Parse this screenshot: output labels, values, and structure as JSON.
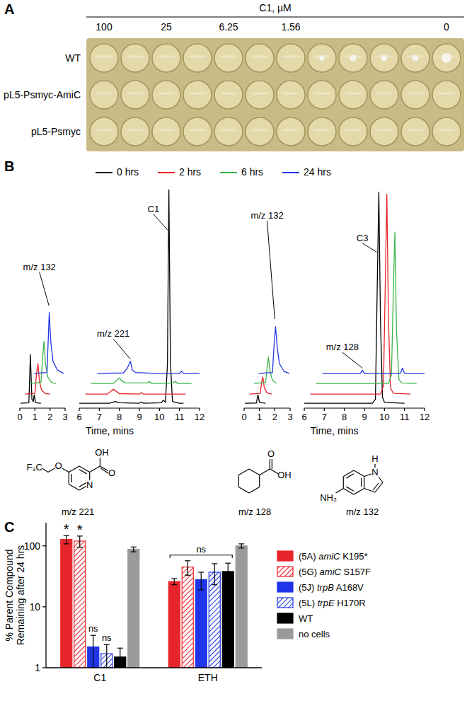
{
  "panel_labels": [
    "A",
    "B",
    "C"
  ],
  "plate": {
    "title": "C1, µM",
    "column_labels": [
      "100",
      null,
      "25",
      null,
      "6.25",
      null,
      "1.56",
      null,
      null,
      null,
      null,
      "0"
    ],
    "rows": [
      "WT",
      "pL5-Psmyc-AmiC",
      "pL5-Psmyc"
    ],
    "growth": [
      [
        0,
        0,
        0,
        0,
        0,
        0,
        0,
        0.4,
        0.5,
        0.5,
        0.5,
        0.9
      ],
      [
        0,
        0,
        0,
        0,
        0,
        0,
        0,
        0,
        0,
        0,
        0,
        0
      ],
      [
        0,
        0,
        0,
        0,
        0,
        0,
        0,
        0,
        0,
        0,
        0,
        0
      ]
    ]
  },
  "chromatogram_legend": [
    {
      "name": "0 hrs",
      "color": "#000000"
    },
    {
      "name": "2 hrs",
      "color": "#e8242b"
    },
    {
      "name": "6 hrs",
      "color": "#3cb54a"
    },
    {
      "name": "24 hrs",
      "color": "#1f35e6"
    }
  ],
  "structures": [
    {
      "label": "m/z 221",
      "atoms": [
        "F₃C",
        "O",
        "N",
        "O",
        "OH"
      ]
    },
    {
      "label": "m/z 128",
      "atoms": [
        "O",
        "OH"
      ]
    },
    {
      "label": "m/z 132",
      "atoms": [
        "H",
        "N",
        "NH₂"
      ]
    }
  ],
  "chart_data": [
    {
      "type": "line",
      "xlim": [
        0,
        3
      ],
      "xticks": [
        0,
        1,
        2,
        3
      ],
      "ylim": [
        0,
        100
      ],
      "tick_labels": "x",
      "series": [
        {
          "color": "#000000",
          "x": [
            0.05,
            0.6,
            0.7,
            0.8,
            0.9,
            0.95,
            1.05,
            1.4
          ],
          "values": [
            2.2,
            2.4,
            24,
            4,
            3,
            6,
            2.4,
            2.2
          ]
        },
        {
          "color": "#e8242b",
          "x": [
            0.35,
            1.0,
            1.1,
            1.2,
            1.3,
            1.45,
            1.7,
            2.0
          ],
          "values": [
            6.3,
            6.6,
            15,
            20,
            12,
            8,
            6.5,
            6.3
          ]
        },
        {
          "color": "#3cb54a",
          "x": [
            0.65,
            1.4,
            1.5,
            1.6,
            1.7,
            1.85,
            2.1,
            2.4
          ],
          "values": [
            11.1,
            11.5,
            22,
            30,
            20,
            14,
            11.5,
            11.1
          ]
        },
        {
          "color": "#1f35e6",
          "x": [
            0.95,
            1.8,
            1.88,
            1.95,
            2.05,
            2.2,
            2.5,
            2.9
          ],
          "values": [
            15.6,
            16,
            30,
            43,
            30,
            21,
            17,
            15.6
          ]
        }
      ],
      "annotations": [
        {
          "text": "m/z 132",
          "x": 1.3,
          "y": 62,
          "target_x": 1.93,
          "target_y": 46
        }
      ]
    },
    {
      "type": "line",
      "xlim": [
        6,
        12
      ],
      "xticks": [
        6,
        7,
        8,
        9,
        10,
        11,
        12
      ],
      "ylim": [
        0,
        100
      ],
      "tick_labels": "x",
      "xlabel": "Time, mins",
      "series": [
        {
          "color": "#000000",
          "x": [
            6,
            7.5,
            7.8,
            8,
            9.0,
            9.1,
            9.2,
            10.1,
            10.2,
            10.3,
            10.4,
            10.47,
            10.55,
            10.65,
            11,
            11.2
          ],
          "values": [
            2.2,
            2.2,
            3,
            2.4,
            2.2,
            2.8,
            2.2,
            2.4,
            3.6,
            2.6,
            20,
            98,
            20,
            3,
            2.2,
            2.2
          ]
        },
        {
          "color": "#e8242b",
          "x": [
            6.3,
            7.4,
            7.7,
            7.85,
            8.0,
            9.0,
            9.1,
            9.2,
            10.3,
            11.3
          ],
          "values": [
            6.3,
            6.3,
            8.5,
            7.5,
            6.5,
            6.3,
            7,
            6.3,
            6.3,
            6.3
          ]
        },
        {
          "color": "#3cb54a",
          "x": [
            6.6,
            7.7,
            8.0,
            8.15,
            8.3,
            9.4,
            9.5,
            9.6,
            10.6,
            10.8,
            10.9,
            11.6
          ],
          "values": [
            11.1,
            11.1,
            13.5,
            12,
            11.3,
            11.3,
            12,
            11.1,
            11.2,
            12,
            11.1,
            11.1
          ]
        },
        {
          "color": "#1f35e6",
          "x": [
            6.9,
            8.2,
            8.4,
            8.55,
            8.65,
            8.8,
            9.8,
            11,
            11.1,
            11.2,
            12
          ],
          "values": [
            15.6,
            15.8,
            18,
            21,
            17,
            16,
            15.6,
            15.6,
            16.5,
            15.6,
            15.6
          ]
        }
      ],
      "annotations": [
        {
          "text": "m/z 221",
          "x": 7.7,
          "y": 32,
          "target_x": 8.55,
          "target_y": 22
        },
        {
          "text": "C1",
          "x": 9.7,
          "y": 88,
          "target_x": 10.4,
          "target_y": 80
        }
      ]
    },
    {
      "type": "line",
      "xlim": [
        0,
        3
      ],
      "xticks": [
        0,
        1,
        2,
        3
      ],
      "ylim": [
        0,
        100
      ],
      "tick_labels": "x",
      "series": [
        {
          "color": "#000000",
          "x": [
            0.05,
            0.8,
            0.9,
            1.0,
            1.4
          ],
          "values": [
            2.2,
            2.3,
            6,
            2.6,
            2.2
          ]
        },
        {
          "color": "#e8242b",
          "x": [
            0.35,
            1.05,
            1.15,
            1.22,
            1.32,
            1.5,
            1.8
          ],
          "values": [
            6.3,
            6.6,
            12,
            14,
            9,
            6.8,
            6.3
          ]
        },
        {
          "color": "#3cb54a",
          "x": [
            0.65,
            1.4,
            1.5,
            1.58,
            1.68,
            1.85,
            2.1
          ],
          "values": [
            11.1,
            11.5,
            18,
            23,
            17,
            12.5,
            11.1
          ]
        },
        {
          "color": "#1f35e6",
          "x": [
            0.95,
            1.85,
            1.95,
            2.05,
            2.15,
            2.3,
            2.6,
            2.95
          ],
          "values": [
            15.6,
            16,
            28,
            36.5,
            28,
            20,
            16.5,
            15.6
          ]
        }
      ],
      "annotations": [
        {
          "text": "m/z 132",
          "x": 1.5,
          "y": 85,
          "target_x": 2.0,
          "target_y": 40
        }
      ]
    },
    {
      "type": "line",
      "xlim": [
        6,
        12
      ],
      "xticks": [
        6,
        7,
        8,
        9,
        10,
        11,
        12
      ],
      "ylim": [
        0,
        100
      ],
      "tick_labels": "x",
      "xlabel": "Time, mins",
      "series": [
        {
          "color": "#000000",
          "x": [
            6,
            9.4,
            9.55,
            9.65,
            9.72,
            9.8,
            9.9,
            10.0,
            11.0
          ],
          "values": [
            2.2,
            2.2,
            4,
            60,
            97,
            40,
            5,
            2.6,
            2.2
          ]
        },
        {
          "color": "#e8242b",
          "x": [
            6.3,
            9.8,
            9.95,
            10.05,
            10.12,
            10.2,
            10.3,
            10.45,
            11.3
          ],
          "values": [
            6.3,
            6.3,
            10,
            60,
            96,
            40,
            9,
            6.6,
            6.3
          ]
        },
        {
          "color": "#3cb54a",
          "x": [
            6.6,
            10.2,
            10.35,
            10.45,
            10.52,
            10.6,
            10.72,
            10.85,
            11.6
          ],
          "values": [
            11.1,
            11.1,
            15,
            55,
            79,
            35,
            13,
            11.3,
            11.1
          ]
        },
        {
          "color": "#1f35e6",
          "x": [
            6.9,
            8.8,
            8.9,
            9.0,
            10.8,
            10.9,
            11.0,
            12
          ],
          "values": [
            15.6,
            15.6,
            17,
            15.6,
            15.6,
            18,
            15.6,
            15.6
          ]
        }
      ],
      "annotations": [
        {
          "text": "C3",
          "x": 8.9,
          "y": 75,
          "target_x": 9.62,
          "target_y": 70
        },
        {
          "text": "m/z 128",
          "x": 7.9,
          "y": 26,
          "target_x": 8.9,
          "target_y": 18
        }
      ]
    },
    {
      "type": "bar",
      "log": "y",
      "legend": "right",
      "ylabel": [
        "% Parent Compound",
        "Remaining after 24 hrs"
      ],
      "categories": [
        "C1",
        "ETH"
      ],
      "ylim": [
        1,
        240
      ],
      "yticks": [
        1,
        10,
        100
      ],
      "series": [
        {
          "name": "(5A) amiC K195*",
          "color": "#e8242b",
          "line_style": "solid",
          "values": [
            128,
            26
          ],
          "errors": [
            20,
            3
          ]
        },
        {
          "name": "(5G) amiC S157F",
          "color": "#e8242b",
          "line_style": "hatched",
          "values": [
            120,
            45
          ],
          "errors": [
            25,
            12
          ]
        },
        {
          "name": "(5J) trpB A168V",
          "color": "#2035e8",
          "line_style": "solid",
          "values": [
            2.2,
            28
          ],
          "errors": [
            1.2,
            9
          ]
        },
        {
          "name": "(5L) trpE H170R",
          "color": "#2035e8",
          "line_style": "hatched",
          "values": [
            1.7,
            37
          ],
          "errors": [
            0.7,
            14
          ]
        },
        {
          "name": "WT",
          "color": "#000000",
          "line_style": "solid",
          "values": [
            1.5,
            38
          ],
          "errors": [
            0.6,
            14
          ]
        },
        {
          "name": "no cells",
          "color": "#9a9a9a",
          "line_style": "solid",
          "values": [
            88,
            100
          ],
          "errors": [
            8,
            8
          ]
        }
      ],
      "annotations": [
        {
          "text": "*",
          "category": 0,
          "series": 0
        },
        {
          "text": "*",
          "category": 0,
          "series": 1
        },
        {
          "text": "ns",
          "category": 0,
          "series": 2
        },
        {
          "text": "ns",
          "category": 0,
          "series": 3
        },
        {
          "text": "ns",
          "category": 1,
          "series_range": [
            0,
            4
          ]
        }
      ]
    }
  ]
}
